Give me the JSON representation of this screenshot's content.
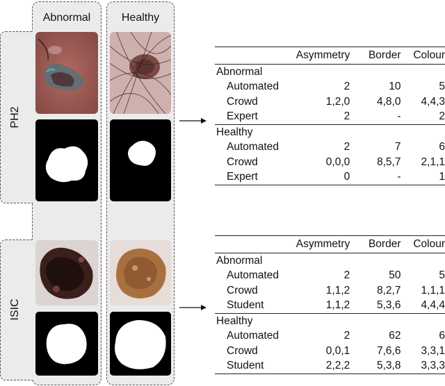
{
  "columns": {
    "abnormal": "Abnormal",
    "healthy": "Healthy"
  },
  "datasets": {
    "ph2": "PH2",
    "isic": "ISIC"
  },
  "table_ph2": {
    "headers": [
      "Asymmetry",
      "Border",
      "Colour"
    ],
    "groups": [
      {
        "name": "Abnormal",
        "rows": [
          {
            "label": "Automated",
            "values": [
              "2",
              "10",
              "5"
            ]
          },
          {
            "label": "Crowd",
            "values": [
              "1,2,0",
              "4,8,0",
              "4,4,3"
            ]
          },
          {
            "label": "Expert",
            "values": [
              "2",
              "-",
              "2"
            ]
          }
        ]
      },
      {
        "name": "Healthy",
        "rows": [
          {
            "label": "Automated",
            "values": [
              "2",
              "7",
              "6"
            ]
          },
          {
            "label": "Crowd",
            "values": [
              "0,0,0",
              "8,5,7",
              "2,1,1"
            ]
          },
          {
            "label": "Expert",
            "values": [
              "0",
              "-",
              "1"
            ]
          }
        ]
      }
    ]
  },
  "table_isic": {
    "headers": [
      "Asymmetry",
      "Border",
      "Colour"
    ],
    "groups": [
      {
        "name": "Abnormal",
        "rows": [
          {
            "label": "Automated",
            "values": [
              "2",
              "50",
              "5"
            ]
          },
          {
            "label": "Crowd",
            "values": [
              "1,1,2",
              "8,2,7",
              "1,1,1"
            ]
          },
          {
            "label": "Student",
            "values": [
              "1,1,2",
              "5,3,6",
              "4,4,4"
            ]
          }
        ]
      },
      {
        "name": "Healthy",
        "rows": [
          {
            "label": "Automated",
            "values": [
              "2",
              "62",
              "6"
            ]
          },
          {
            "label": "Crowd",
            "values": [
              "0,0,1",
              "7,6,6",
              "3,3,1"
            ]
          },
          {
            "label": "Student",
            "values": [
              "2,2,2",
              "5,3,8",
              "3,3,3"
            ]
          }
        ]
      }
    ]
  }
}
